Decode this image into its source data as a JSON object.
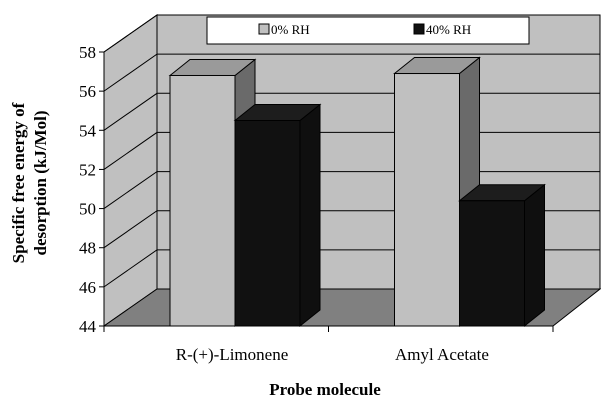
{
  "chart_data": {
    "type": "bar",
    "categories": [
      "R-(+)-Limonene",
      "Amyl Acetate"
    ],
    "series": [
      {
        "name": "0% RH",
        "values": [
          56.8,
          56.9
        ],
        "color": "#c0c0c0"
      },
      {
        "name": "40% RH",
        "values": [
          54.5,
          50.4
        ],
        "color": "#111111"
      }
    ],
    "title": "",
    "xlabel": "Probe molecule",
    "ylabel_lines": [
      "Specific free energy of",
      "desorption (kJ/Mol)"
    ],
    "ylim": [
      44,
      58
    ],
    "yticks": [
      "44",
      "46",
      "48",
      "50",
      "52",
      "54",
      "56",
      "58"
    ],
    "grid": true,
    "legend_position": "top",
    "colors": {
      "wall": "#c0c0c0",
      "floor": "#808080",
      "background": "#ffffff"
    }
  }
}
